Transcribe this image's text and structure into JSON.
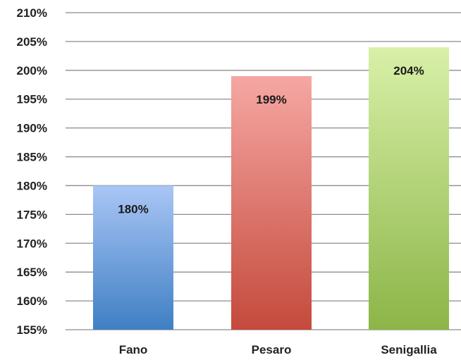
{
  "chart_data": {
    "type": "bar",
    "title": "",
    "xlabel": "",
    "ylabel": "",
    "categories": [
      "Fano",
      "Pesaro",
      "Senigallia"
    ],
    "values": [
      180,
      199,
      204
    ],
    "data_labels": [
      "180%",
      "199%",
      "204%"
    ],
    "ylim": [
      155,
      210
    ],
    "y_ticks": [
      155,
      160,
      165,
      170,
      175,
      180,
      185,
      190,
      195,
      200,
      205,
      210
    ],
    "y_tick_labels": [
      "155%",
      "160%",
      "165%",
      "170%",
      "175%",
      "180%",
      "185%",
      "190%",
      "195%",
      "200%",
      "205%",
      "210%"
    ],
    "grid": true,
    "legend": "none",
    "bar_colors": [
      {
        "top": "#a9c6f5",
        "bottom": "#3f7fc4"
      },
      {
        "top": "#f6a7a3",
        "bottom": "#c44a3c"
      },
      {
        "top": "#d8f0a8",
        "bottom": "#8cb548"
      }
    ]
  }
}
